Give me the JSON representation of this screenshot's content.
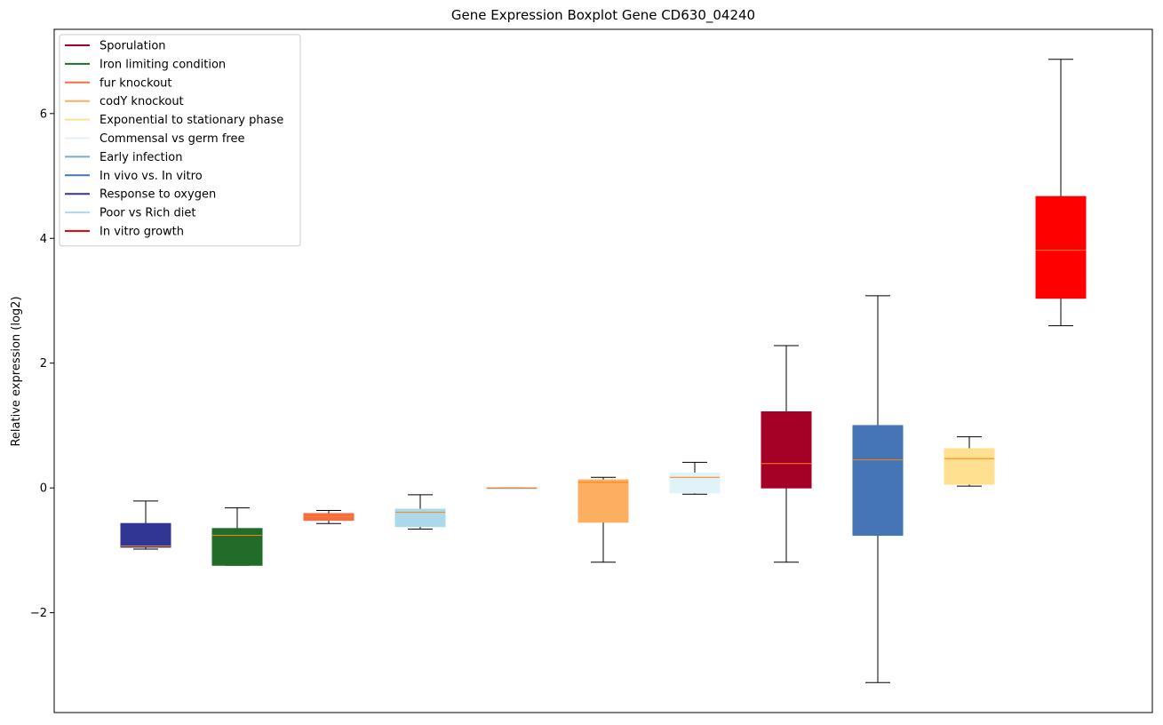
{
  "chart_data": {
    "type": "box",
    "title": "Gene Expression Boxplot Gene CD630_04240",
    "xlabel": "",
    "ylabel": "Relative expression (log2)",
    "ylim": [
      -3.6,
      7.35
    ],
    "y_ticks": [
      -2,
      0,
      2,
      4,
      6
    ],
    "y_tick_labels": [
      "−2",
      "0",
      "2",
      "4",
      "6"
    ],
    "grid": false,
    "median_color": "#ff7f0e",
    "legend": {
      "placement": "top-left",
      "entries": [
        {
          "label": "Sporulation",
          "color": "#a50026"
        },
        {
          "label": "Iron limiting condition",
          "color": "#226c2a"
        },
        {
          "label": "fur knockout",
          "color": "#f46d43"
        },
        {
          "label": "codY knockout",
          "color": "#fdae61"
        },
        {
          "label": "Exponential to stationary phase",
          "color": "#fee090"
        },
        {
          "label": "Commensal vs germ free",
          "color": "#e0f3f8"
        },
        {
          "label": "Early infection",
          "color": "#74add1"
        },
        {
          "label": "In vivo vs. In vitro",
          "color": "#4575b4"
        },
        {
          "label": "Response to oxygen",
          "color": "#313695"
        },
        {
          "label": "Poor vs Rich diet",
          "color": "#abd9e9"
        },
        {
          "label": "In vitro growth",
          "color": "#ff0000"
        }
      ]
    },
    "boxes": [
      {
        "group": "Response to oxygen",
        "color": "#313695",
        "whisker_low": -0.98,
        "q1": -0.95,
        "median": -0.93,
        "q3": -0.57,
        "whisker_high": -0.21
      },
      {
        "group": "Iron limiting condition",
        "color": "#226c2a",
        "whisker_low": -1.24,
        "q1": -1.24,
        "median": -0.76,
        "q3": -0.65,
        "whisker_high": -0.32
      },
      {
        "group": "fur knockout",
        "color": "#f46d43",
        "whisker_low": -0.57,
        "q1": -0.52,
        "median": -0.46,
        "q3": -0.41,
        "whisker_high": -0.36
      },
      {
        "group": "Poor vs Rich diet",
        "color": "#abd9e9",
        "whisker_low": -0.66,
        "q1": -0.62,
        "median": -0.39,
        "q3": -0.34,
        "whisker_high": -0.11
      },
      {
        "group": "Early infection",
        "color": "#74add1",
        "whisker_low": 0.0,
        "q1": 0.0,
        "median": 0.0,
        "q3": 0.0,
        "whisker_high": 0.0
      },
      {
        "group": "codY knockout",
        "color": "#fdae61",
        "whisker_low": -1.19,
        "q1": -0.55,
        "median": 0.09,
        "q3": 0.13,
        "whisker_high": 0.17
      },
      {
        "group": "Commensal vs germ free",
        "color": "#e0f3f8",
        "whisker_low": -0.1,
        "q1": -0.08,
        "median": 0.17,
        "q3": 0.24,
        "whisker_high": 0.41
      },
      {
        "group": "Sporulation",
        "color": "#a50026",
        "whisker_low": -1.19,
        "q1": 0.0,
        "median": 0.39,
        "q3": 1.22,
        "whisker_high": 2.28
      },
      {
        "group": "In vivo vs. In vitro",
        "color": "#4575b4",
        "whisker_low": -3.12,
        "q1": -0.76,
        "median": 0.45,
        "q3": 1.0,
        "whisker_high": 3.08
      },
      {
        "group": "Exponential to stationary phase",
        "color": "#fee090",
        "whisker_low": 0.03,
        "q1": 0.06,
        "median": 0.47,
        "q3": 0.63,
        "whisker_high": 0.82
      },
      {
        "group": "In vitro growth",
        "color": "#ff0000",
        "whisker_low": 2.6,
        "q1": 3.04,
        "median": 3.81,
        "q3": 4.67,
        "whisker_high": 6.87
      }
    ]
  }
}
